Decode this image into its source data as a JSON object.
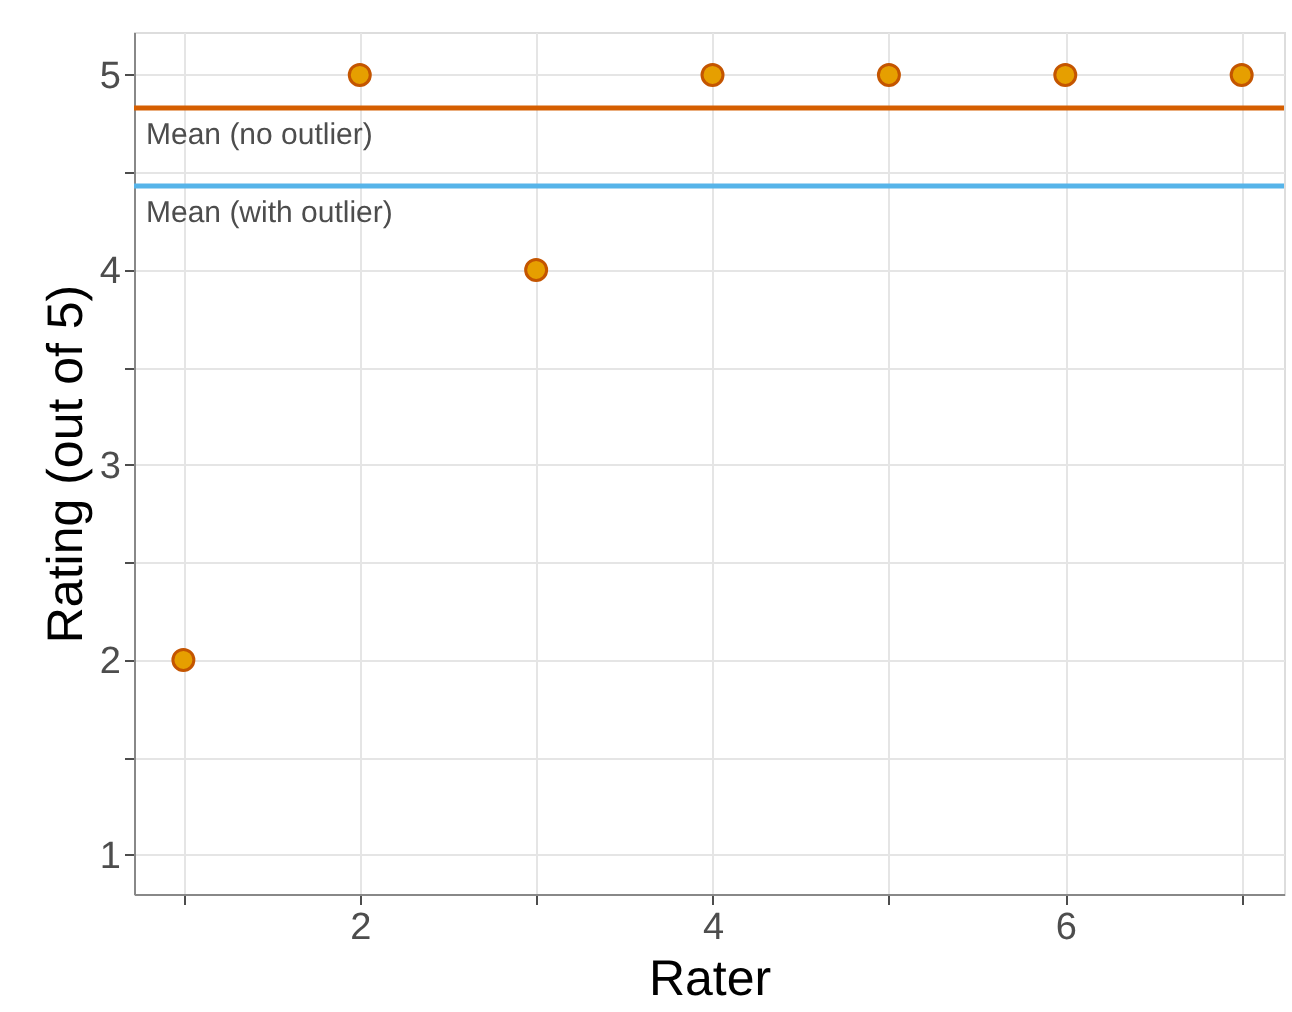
{
  "chart_data": {
    "type": "scatter",
    "xlabel": "Rater",
    "ylabel": "Rating (out of 5)",
    "x": [
      1,
      2,
      3,
      4,
      5,
      6,
      7
    ],
    "series": [
      {
        "color": "#e69f00",
        "values": [
          2,
          5,
          4,
          5,
          5,
          5,
          5
        ]
      }
    ],
    "xlim": [
      0.72,
      7.24
    ],
    "ylim": [
      0.8,
      5.22
    ],
    "xticks": [
      {
        "value": 1,
        "label": null
      },
      2,
      {
        "value": 3,
        "label": null
      },
      4,
      {
        "value": 5,
        "label": null
      },
      6,
      {
        "value": 7,
        "label": null
      }
    ],
    "yticks": [
      1,
      {
        "value": 1.5,
        "label": null
      },
      2,
      {
        "value": 2.5,
        "label": null
      },
      3,
      {
        "value": 3.5,
        "label": null
      },
      4,
      {
        "value": 4.5,
        "label": null
      },
      5
    ],
    "ref_lines": [
      {
        "axis": "y",
        "value": 4.83,
        "label": "Mean (no outlier)",
        "color": "#d55e00"
      },
      {
        "axis": "y",
        "value": 4.43,
        "label": "Mean (with outlier)",
        "color": "#56b4e9"
      }
    ],
    "grid": true,
    "marker": "circle"
  }
}
